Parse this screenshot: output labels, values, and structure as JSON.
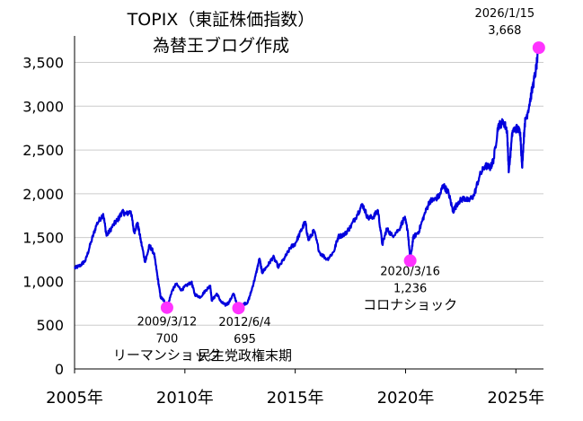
{
  "chart_data": {
    "type": "line",
    "title": "TOPIX（東証株価指数）",
    "subtitle": "為替王ブログ作成",
    "x_unit": "year",
    "xlim": [
      2005.0,
      2026.25
    ],
    "ylim": [
      0,
      3700
    ],
    "yticks": [
      {
        "value": 0,
        "label": "0"
      },
      {
        "value": 500,
        "label": "500"
      },
      {
        "value": 1000,
        "label": "1,000"
      },
      {
        "value": 1500,
        "label": "1,500"
      },
      {
        "value": 2000,
        "label": "2,000"
      },
      {
        "value": 2500,
        "label": "2,500"
      },
      {
        "value": 3000,
        "label": "3,000"
      },
      {
        "value": 3500,
        "label": "3,500"
      }
    ],
    "xticks": [
      {
        "value": 2005,
        "label": "2005年"
      },
      {
        "value": 2010,
        "label": "2010年"
      },
      {
        "value": 2015,
        "label": "2015年"
      },
      {
        "value": 2020,
        "label": "2020年"
      },
      {
        "value": 2025,
        "label": "2025年"
      }
    ],
    "grid": "horizontal",
    "line_color": "#0000dd",
    "marker_color": "#ff33ff",
    "series": [
      {
        "values": [
          [
            2005.0,
            1150
          ],
          [
            2005.25,
            1180
          ],
          [
            2005.5,
            1240
          ],
          [
            2005.75,
            1450
          ],
          [
            2006.0,
            1650
          ],
          [
            2006.3,
            1770
          ],
          [
            2006.45,
            1520
          ],
          [
            2006.75,
            1640
          ],
          [
            2007.0,
            1720
          ],
          [
            2007.15,
            1790
          ],
          [
            2007.35,
            1770
          ],
          [
            2007.55,
            1800
          ],
          [
            2007.7,
            1560
          ],
          [
            2007.85,
            1670
          ],
          [
            2008.0,
            1470
          ],
          [
            2008.2,
            1220
          ],
          [
            2008.4,
            1410
          ],
          [
            2008.6,
            1320
          ],
          [
            2008.75,
            1070
          ],
          [
            2008.9,
            820
          ],
          [
            2009.05,
            780
          ],
          [
            2009.2,
            700
          ],
          [
            2009.4,
            880
          ],
          [
            2009.6,
            970
          ],
          [
            2009.85,
            900
          ],
          [
            2010.05,
            950
          ],
          [
            2010.3,
            990
          ],
          [
            2010.45,
            850
          ],
          [
            2010.7,
            820
          ],
          [
            2010.95,
            900
          ],
          [
            2011.15,
            950
          ],
          [
            2011.22,
            780
          ],
          [
            2011.45,
            860
          ],
          [
            2011.65,
            760
          ],
          [
            2011.85,
            730
          ],
          [
            2012.0,
            760
          ],
          [
            2012.2,
            860
          ],
          [
            2012.43,
            695
          ],
          [
            2012.65,
            740
          ],
          [
            2012.85,
            760
          ],
          [
            2013.0,
            880
          ],
          [
            2013.2,
            1060
          ],
          [
            2013.38,
            1260
          ],
          [
            2013.5,
            1100
          ],
          [
            2013.75,
            1180
          ],
          [
            2014.0,
            1280
          ],
          [
            2014.25,
            1160
          ],
          [
            2014.55,
            1280
          ],
          [
            2014.8,
            1390
          ],
          [
            2015.0,
            1430
          ],
          [
            2015.25,
            1570
          ],
          [
            2015.45,
            1680
          ],
          [
            2015.6,
            1470
          ],
          [
            2015.85,
            1580
          ],
          [
            2016.1,
            1330
          ],
          [
            2016.45,
            1250
          ],
          [
            2016.75,
            1340
          ],
          [
            2016.95,
            1510
          ],
          [
            2017.25,
            1540
          ],
          [
            2017.5,
            1620
          ],
          [
            2017.8,
            1760
          ],
          [
            2018.05,
            1880
          ],
          [
            2018.3,
            1720
          ],
          [
            2018.55,
            1740
          ],
          [
            2018.75,
            1810
          ],
          [
            2018.95,
            1420
          ],
          [
            2019.15,
            1600
          ],
          [
            2019.4,
            1520
          ],
          [
            2019.7,
            1590
          ],
          [
            2019.95,
            1730
          ],
          [
            2020.1,
            1580
          ],
          [
            2020.21,
            1236
          ],
          [
            2020.35,
            1500
          ],
          [
            2020.6,
            1570
          ],
          [
            2020.85,
            1760
          ],
          [
            2021.1,
            1920
          ],
          [
            2021.3,
            1930
          ],
          [
            2021.55,
            1980
          ],
          [
            2021.7,
            2100
          ],
          [
            2021.95,
            2010
          ],
          [
            2022.15,
            1800
          ],
          [
            2022.4,
            1910
          ],
          [
            2022.65,
            1950
          ],
          [
            2022.85,
            1920
          ],
          [
            2023.1,
            1980
          ],
          [
            2023.35,
            2200
          ],
          [
            2023.6,
            2320
          ],
          [
            2023.85,
            2300
          ],
          [
            2024.0,
            2400
          ],
          [
            2024.2,
            2780
          ],
          [
            2024.45,
            2820
          ],
          [
            2024.6,
            2720
          ],
          [
            2024.68,
            2250
          ],
          [
            2024.85,
            2720
          ],
          [
            2025.05,
            2750
          ],
          [
            2025.2,
            2700
          ],
          [
            2025.28,
            2300
          ],
          [
            2025.4,
            2800
          ],
          [
            2025.55,
            2950
          ],
          [
            2025.75,
            3200
          ],
          [
            2025.9,
            3400
          ],
          [
            2026.04,
            3668
          ]
        ]
      }
    ],
    "annotations": [
      {
        "x": 2009.19,
        "y": 700,
        "date": "2009/3/12",
        "value": "700",
        "event": "リーマンショック"
      },
      {
        "x": 2012.43,
        "y": 695,
        "date": "2012/6/4",
        "value": "695",
        "event": "民主党政権末期"
      },
      {
        "x": 2020.21,
        "y": 1236,
        "date": "2020/3/16",
        "value": "1,236",
        "event": "コロナショック"
      },
      {
        "x": 2026.04,
        "y": 3668,
        "date": "2026/1/15",
        "value": "3,668",
        "event": ""
      }
    ]
  }
}
